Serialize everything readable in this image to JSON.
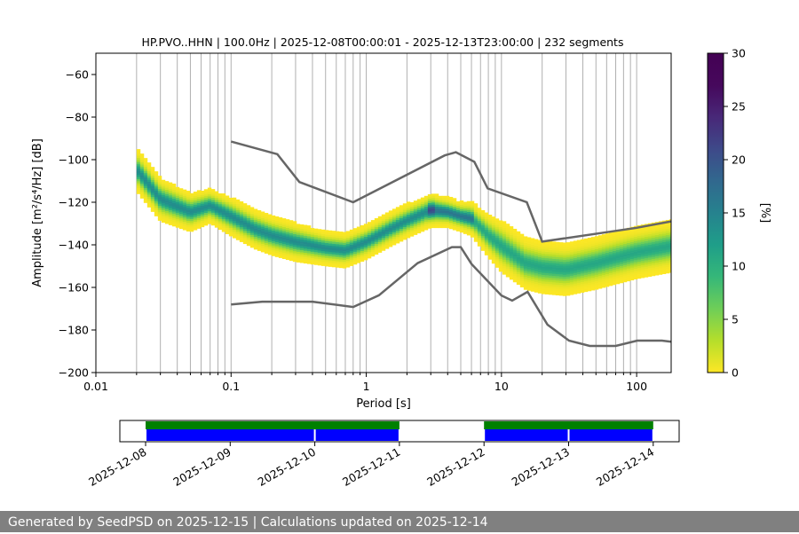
{
  "chart_data": {
    "type": "heatmap",
    "title": "HP.PVO..HHN | 100.0Hz | 2025-12-08T00:00:01 - 2025-12-13T23:00:00 | 232 segments",
    "xlabel": "Period [s]",
    "ylabel": "Amplitude [m²/s⁴/Hz] [dB]",
    "x_scale": "log",
    "xlim": [
      0.01,
      180
    ],
    "ylim": [
      -200,
      -50
    ],
    "x_ticks": [
      "0.01",
      "0.1",
      "1",
      "10",
      "100"
    ],
    "y_ticks": [
      "−60",
      "−80",
      "−100",
      "−120",
      "−140",
      "−160",
      "−180",
      "−200"
    ],
    "colorbar": {
      "label": "[%]",
      "range": [
        0,
        30
      ],
      "ticks": [
        "0",
        "5",
        "10",
        "15",
        "20",
        "25",
        "30"
      ]
    },
    "mode_curve": {
      "period": [
        0.02,
        0.03,
        0.05,
        0.07,
        0.1,
        0.15,
        0.2,
        0.3,
        0.5,
        0.7,
        1.0,
        1.5,
        2.0,
        3.0,
        4.0,
        5.0,
        6.0,
        8.0,
        10,
        15,
        20,
        30,
        50,
        100,
        180
      ],
      "db": [
        -104,
        -118,
        -124,
        -121,
        -126,
        -132,
        -135,
        -138,
        -141,
        -142,
        -138,
        -132,
        -128,
        -123,
        -124,
        -126,
        -127,
        -135,
        -140,
        -148,
        -150,
        -151,
        -148,
        -143,
        -140
      ]
    },
    "spread_db": [
      10,
      10,
      9,
      8,
      9,
      9,
      9,
      9,
      8,
      8,
      8,
      8,
      8,
      8,
      7,
      7,
      8,
      10,
      12,
      12,
      12,
      12,
      12,
      12,
      12
    ],
    "noise_models": [
      {
        "name": "",
        "period": [
          0.1,
          0.22,
          0.32,
          0.8,
          3.8,
          4.6,
          6.3,
          7.9,
          15.4,
          20,
          100,
          180
        ],
        "db": [
          -91.5,
          -97.4,
          -110.5,
          -120,
          -98,
          -96.5,
          -101,
          -113.5,
          -120,
          -138.5,
          -132,
          -129
        ]
      },
      {
        "name": "",
        "period": [
          0.1,
          0.17,
          0.4,
          0.8,
          1.24,
          2.4,
          4.3,
          5.0,
          6.0,
          10,
          12,
          15.6,
          21.9,
          31.6,
          45,
          70,
          101,
          154,
          180
        ],
        "db": [
          -168,
          -166.7,
          -166.7,
          -169.2,
          -163.7,
          -148.6,
          -141.1,
          -141.1,
          -149,
          -163.8,
          -166.2,
          -162.1,
          -177.5,
          -185,
          -187.5,
          -187.5,
          -185,
          -185,
          -185.5
        ]
      }
    ],
    "availability": {
      "date_ticks": [
        "2025-12-08",
        "2025-12-09",
        "2025-12-10",
        "2025-12-11",
        "2025-12-12",
        "2025-12-13",
        "2025-12-14"
      ],
      "green_spans": [
        [
          "2025-12-08",
          "2025-12-11"
        ],
        [
          "2025-12-12",
          "2025-12-14"
        ]
      ],
      "blue_spans": [
        [
          "2025-12-08",
          "2025-12-10"
        ],
        [
          "2025-12-10",
          "2025-12-11"
        ],
        [
          "2025-12-12",
          "2025-12-13"
        ],
        [
          "2025-12-13",
          "2025-12-14"
        ]
      ]
    },
    "colors": {
      "noise_model": "#666666",
      "grid": "#b0b0b0",
      "availability_green": "#008000",
      "availability_blue": "#0000ff"
    }
  },
  "footer": {
    "text": "Generated by SeedPSD on 2025-12-15 | Calculations updated on 2025-12-14"
  }
}
